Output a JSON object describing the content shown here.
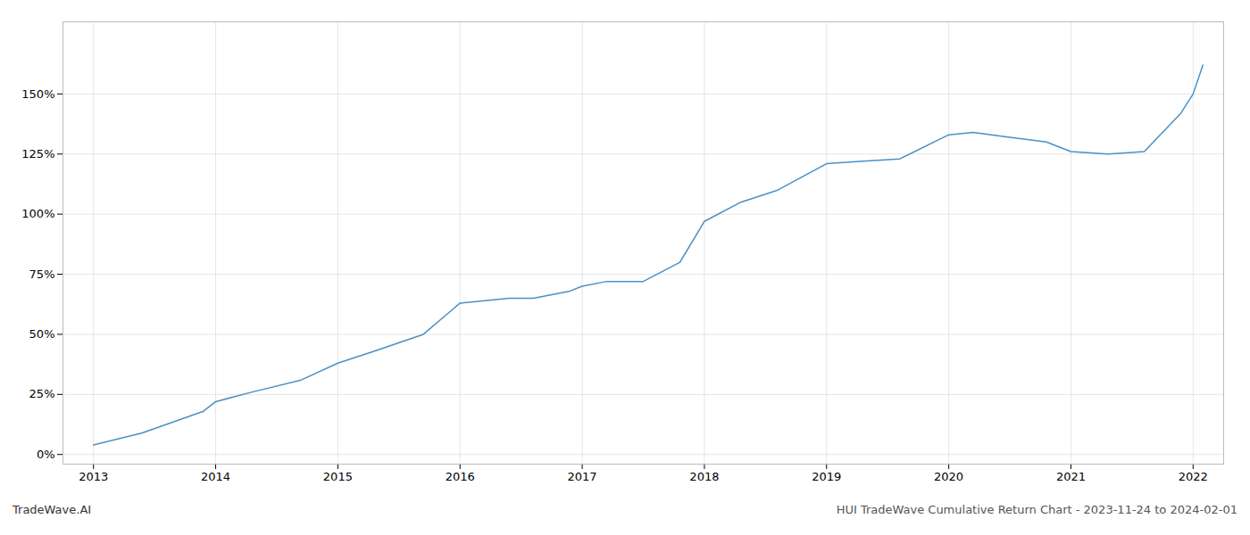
{
  "chart_data": {
    "type": "line",
    "title": "HUI TradeWave Cumulative Return Chart - 2023-11-24 to 2024-02-01",
    "annotations": [
      "TradeWave.AI"
    ],
    "x": [
      2013.0,
      2013.4,
      2013.9,
      2014.0,
      2014.3,
      2014.7,
      2015.0,
      2015.3,
      2015.7,
      2016.0,
      2016.2,
      2016.4,
      2016.6,
      2016.9,
      2017.0,
      2017.2,
      2017.5,
      2017.8,
      2018.0,
      2018.3,
      2018.6,
      2019.0,
      2019.3,
      2019.6,
      2020.0,
      2020.2,
      2020.5,
      2020.8,
      2021.0,
      2021.3,
      2021.6,
      2021.9,
      2022.0,
      2022.08
    ],
    "values": [
      0.04,
      0.09,
      0.18,
      0.22,
      0.26,
      0.31,
      0.38,
      0.43,
      0.5,
      0.63,
      0.64,
      0.65,
      0.65,
      0.68,
      0.7,
      0.72,
      0.72,
      0.8,
      0.97,
      1.05,
      1.1,
      1.21,
      1.22,
      1.23,
      1.33,
      1.34,
      1.32,
      1.3,
      1.26,
      1.25,
      1.26,
      1.42,
      1.5,
      1.62
    ],
    "color": "#4a90c4",
    "xlim": [
      2012.75,
      2022.25
    ],
    "ylim": [
      -0.04,
      1.8
    ],
    "xticks": [
      2013,
      2014,
      2015,
      2016,
      2017,
      2018,
      2019,
      2020,
      2021,
      2022
    ],
    "yticks": [
      {
        "value": 0.0,
        "label": "0%"
      },
      {
        "value": 0.25,
        "label": "25%"
      },
      {
        "value": 0.5,
        "label": "50%"
      },
      {
        "value": 0.75,
        "label": "75%"
      },
      {
        "value": 1.0,
        "label": "100%"
      },
      {
        "value": 1.25,
        "label": "125%"
      },
      {
        "value": 1.5,
        "label": "150%"
      }
    ],
    "grid": true
  }
}
